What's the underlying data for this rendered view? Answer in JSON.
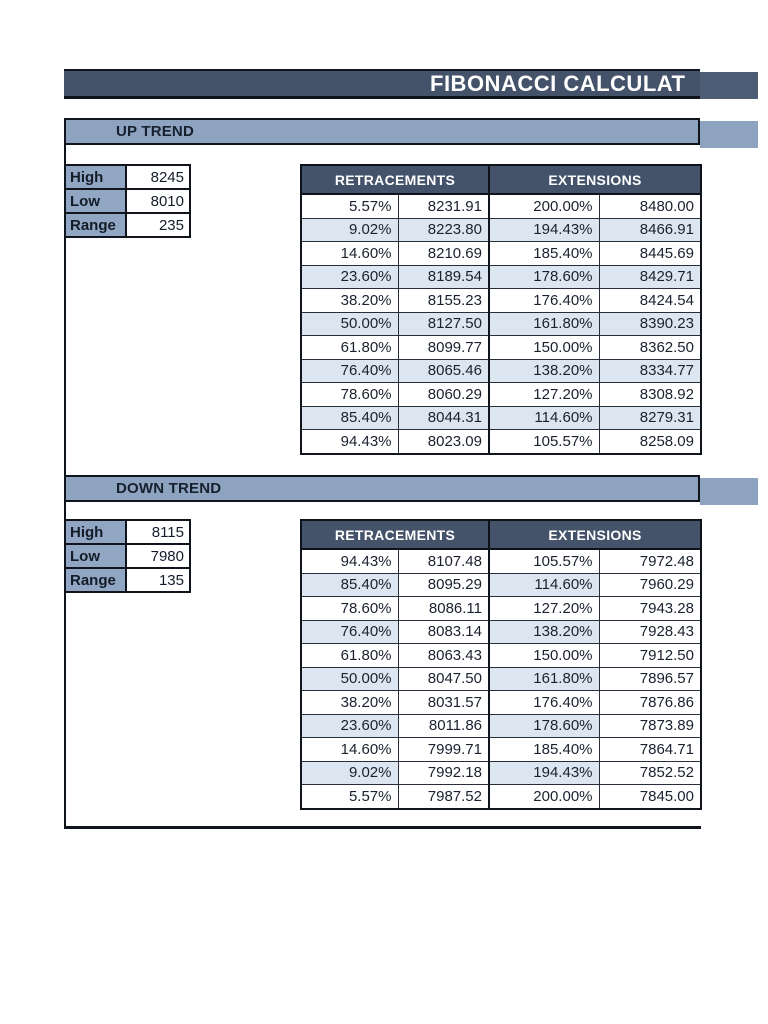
{
  "page": {
    "title": "FIBONACCI CALCULAT",
    "colors": {
      "title_bar": "#44526a",
      "section_band": "#8ea3bf",
      "table_header": "#44526a",
      "alt_row": "#dce6f1",
      "border": "#10151d"
    }
  },
  "up_trend": {
    "section_label": "UP TREND",
    "inputs": {
      "high_label": "High",
      "high_value": "8245",
      "low_label": "Low",
      "low_value": "8010",
      "range_label": "Range",
      "range_value": "235"
    },
    "table": {
      "headers": [
        "RETRACEMENTS",
        "EXTENSIONS"
      ],
      "band_mode": "full",
      "rows": [
        {
          "retr_pct": "5.57%",
          "retr_val": "8231.91",
          "ext_pct": "200.00%",
          "ext_val": "8480.00"
        },
        {
          "retr_pct": "9.02%",
          "retr_val": "8223.80",
          "ext_pct": "194.43%",
          "ext_val": "8466.91"
        },
        {
          "retr_pct": "14.60%",
          "retr_val": "8210.69",
          "ext_pct": "185.40%",
          "ext_val": "8445.69"
        },
        {
          "retr_pct": "23.60%",
          "retr_val": "8189.54",
          "ext_pct": "178.60%",
          "ext_val": "8429.71"
        },
        {
          "retr_pct": "38.20%",
          "retr_val": "8155.23",
          "ext_pct": "176.40%",
          "ext_val": "8424.54"
        },
        {
          "retr_pct": "50.00%",
          "retr_val": "8127.50",
          "ext_pct": "161.80%",
          "ext_val": "8390.23"
        },
        {
          "retr_pct": "61.80%",
          "retr_val": "8099.77",
          "ext_pct": "150.00%",
          "ext_val": "8362.50"
        },
        {
          "retr_pct": "76.40%",
          "retr_val": "8065.46",
          "ext_pct": "138.20%",
          "ext_val": "8334.77"
        },
        {
          "retr_pct": "78.60%",
          "retr_val": "8060.29",
          "ext_pct": "127.20%",
          "ext_val": "8308.92"
        },
        {
          "retr_pct": "85.40%",
          "retr_val": "8044.31",
          "ext_pct": "114.60%",
          "ext_val": "8279.31"
        },
        {
          "retr_pct": "94.43%",
          "retr_val": "8023.09",
          "ext_pct": "105.57%",
          "ext_val": "8258.09"
        }
      ]
    }
  },
  "down_trend": {
    "section_label": "DOWN TREND",
    "inputs": {
      "high_label": "High",
      "high_value": "8115",
      "low_label": "Low",
      "low_value": "7980",
      "range_label": "Range",
      "range_value": "135"
    },
    "table": {
      "headers": [
        "RETRACEMENTS",
        "EXTENSIONS"
      ],
      "band_mode": "percent-only",
      "rows": [
        {
          "retr_pct": "94.43%",
          "retr_val": "8107.48",
          "ext_pct": "105.57%",
          "ext_val": "7972.48"
        },
        {
          "retr_pct": "85.40%",
          "retr_val": "8095.29",
          "ext_pct": "114.60%",
          "ext_val": "7960.29"
        },
        {
          "retr_pct": "78.60%",
          "retr_val": "8086.11",
          "ext_pct": "127.20%",
          "ext_val": "7943.28"
        },
        {
          "retr_pct": "76.40%",
          "retr_val": "8083.14",
          "ext_pct": "138.20%",
          "ext_val": "7928.43"
        },
        {
          "retr_pct": "61.80%",
          "retr_val": "8063.43",
          "ext_pct": "150.00%",
          "ext_val": "7912.50"
        },
        {
          "retr_pct": "50.00%",
          "retr_val": "8047.50",
          "ext_pct": "161.80%",
          "ext_val": "7896.57"
        },
        {
          "retr_pct": "38.20%",
          "retr_val": "8031.57",
          "ext_pct": "176.40%",
          "ext_val": "7876.86"
        },
        {
          "retr_pct": "23.60%",
          "retr_val": "8011.86",
          "ext_pct": "178.60%",
          "ext_val": "7873.89"
        },
        {
          "retr_pct": "14.60%",
          "retr_val": "7999.71",
          "ext_pct": "185.40%",
          "ext_val": "7864.71"
        },
        {
          "retr_pct": "9.02%",
          "retr_val": "7992.18",
          "ext_pct": "194.43%",
          "ext_val": "7852.52"
        },
        {
          "retr_pct": "5.57%",
          "retr_val": "7987.52",
          "ext_pct": "200.00%",
          "ext_val": "7845.00"
        }
      ]
    }
  }
}
